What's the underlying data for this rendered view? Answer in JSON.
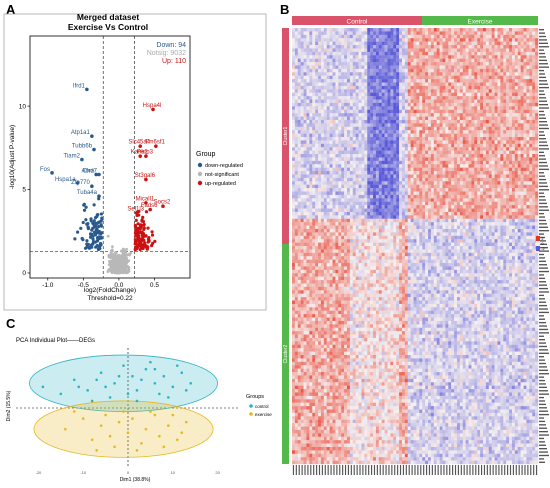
{
  "panels": {
    "a": "A",
    "b": "B",
    "c": "C"
  },
  "chart_data": [
    {
      "type": "scatter",
      "panel": "A",
      "title": "Merged dataset",
      "subtitle": "Exercise Vs Control",
      "xlabel": "log2(FoldChange)",
      "xlabel_sub": "Threshold=0.22",
      "ylabel": "-log10(Adjust P-value)",
      "xlim": [
        -1.25,
        1.0
      ],
      "ylim": [
        -0.3,
        14.2
      ],
      "x_ticks": [
        "-1.0",
        "-0.5",
        "0.0",
        "0.5"
      ],
      "y_ticks": [
        "0",
        "5",
        "10"
      ],
      "threshold_x": [
        -0.22,
        0.22
      ],
      "threshold_y": 1.3,
      "counts": {
        "down": "Down: 94",
        "notsig": "Notsig: 9032",
        "up": "Up: 110"
      },
      "legend": {
        "title": "Group",
        "entries": [
          "down-regulated",
          "not-significant",
          "up-regulated"
        ],
        "placement": "right"
      },
      "colors": {
        "down": "#2a5a8c",
        "notsig": "#b8b8b8",
        "up": "#cc1111"
      },
      "labels_down": [
        {
          "text": "Ifrd1",
          "x": -0.45,
          "y": 11.0
        },
        {
          "text": "Atp1a1",
          "x": -0.38,
          "y": 8.2
        },
        {
          "text": "Tubb6b",
          "x": -0.35,
          "y": 7.4
        },
        {
          "text": "Tiam2",
          "x": -0.52,
          "y": 6.8
        },
        {
          "text": "Fos",
          "x": -0.94,
          "y": 6.0
        },
        {
          "text": "Abra",
          "x": -0.32,
          "y": 5.9
        },
        {
          "text": "Chd7",
          "x": -0.28,
          "y": 5.9
        },
        {
          "text": "Hspa1a",
          "x": -0.58,
          "y": 5.4
        },
        {
          "text": "Zfp770",
          "x": -0.38,
          "y": 5.2
        },
        {
          "text": "Tuba4a",
          "x": -0.28,
          "y": 4.6
        }
      ],
      "labels_up": [
        {
          "text": "Hspa4l",
          "x": 0.48,
          "y": 9.8
        },
        {
          "text": "Slc45a4",
          "x": 0.3,
          "y": 7.6
        },
        {
          "text": "Tm6sf1",
          "x": 0.52,
          "y": 7.6
        },
        {
          "text": "Kank2",
          "x": 0.3,
          "y": 7.0
        },
        {
          "text": "Perp3",
          "x": 0.38,
          "y": 7.0
        },
        {
          "text": "St3gal6",
          "x": 0.38,
          "y": 5.6
        },
        {
          "text": "Micall1",
          "x": 0.38,
          "y": 4.2
        },
        {
          "text": "Socs2",
          "x": 0.62,
          "y": 4.0
        },
        {
          "text": "Fads6",
          "x": 0.44,
          "y": 3.8
        },
        {
          "text": "Sel1l3",
          "x": 0.25,
          "y": 3.6
        }
      ]
    },
    {
      "type": "heatmap",
      "panel": "B",
      "column_groups": [
        {
          "name": "Control",
          "color": "#d9536b"
        },
        {
          "name": "Exercise",
          "color": "#55b84a"
        }
      ],
      "row_clusters": [
        {
          "name": "Cluster1",
          "color": "#d9536b"
        },
        {
          "name": "Cluster2",
          "color": "#55b84a"
        }
      ],
      "colors": {
        "high": "#e8331f",
        "mid": "#f5f0f0",
        "low": "#5a5ad8"
      },
      "scale_ticks": [
        "2",
        "0",
        "-2"
      ],
      "rows_per_cluster": [
        56,
        72
      ],
      "columns_per_group": [
        40,
        45
      ]
    },
    {
      "type": "scatter",
      "panel": "C",
      "title": "PCA Individual Plot——DEGs",
      "xlabel": "Dim1 (38.8%)",
      "ylabel": "Dim2 (15.5%)",
      "xlim": [
        -25,
        25
      ],
      "ylim": [
        -17,
        17
      ],
      "x_ticks": [
        "-20",
        "-10",
        "0",
        "10",
        "20"
      ],
      "legend": {
        "title": "Groups",
        "entries": [
          "control",
          "exercise"
        ],
        "placement": "right"
      },
      "colors": {
        "control": "#2fb3c4",
        "exercise": "#e6b820"
      },
      "series": [
        {
          "name": "control",
          "points": [
            [
              -19,
              6
            ],
            [
              -15,
              4
            ],
            [
              -12,
              8
            ],
            [
              -9,
              5
            ],
            [
              -6,
              10
            ],
            [
              -3,
              7
            ],
            [
              -1,
              12
            ],
            [
              1,
              9
            ],
            [
              2,
              5
            ],
            [
              4,
              11
            ],
            [
              6,
              7
            ],
            [
              8,
              9
            ],
            [
              10,
              6
            ],
            [
              12,
              10
            ],
            [
              14,
              7
            ],
            [
              -4,
              3
            ],
            [
              0,
              4
            ],
            [
              3,
              8
            ],
            [
              5,
              13
            ],
            [
              -8,
              2
            ],
            [
              -11,
              6
            ],
            [
              7,
              4
            ],
            [
              11,
              12
            ],
            [
              -2,
              9
            ],
            [
              9,
              3
            ],
            [
              -5,
              6
            ],
            [
              2,
              2
            ],
            [
              13,
              5
            ],
            [
              -7,
              8
            ],
            [
              6,
              11
            ]
          ]
        },
        {
          "name": "exercise",
          "points": [
            [
              -14,
              -6
            ],
            [
              -10,
              -3
            ],
            [
              -8,
              -9
            ],
            [
              -6,
              -5
            ],
            [
              -4,
              -8
            ],
            [
              -2,
              -4
            ],
            [
              0,
              -7
            ],
            [
              1,
              -3
            ],
            [
              3,
              -10
            ],
            [
              4,
              -6
            ],
            [
              6,
              -2
            ],
            [
              7,
              -8
            ],
            [
              9,
              -5
            ],
            [
              11,
              -9
            ],
            [
              13,
              -4
            ],
            [
              -12,
              -1
            ],
            [
              -3,
              -11
            ],
            [
              2,
              -12
            ],
            [
              5,
              -1
            ],
            [
              8,
              -11
            ],
            [
              10,
              -2
            ],
            [
              -7,
              -12
            ],
            [
              -1,
              -1
            ],
            [
              12,
              -7
            ],
            [
              -5,
              -2
            ]
          ]
        }
      ],
      "ellipses": [
        {
          "name": "control",
          "center": [
            -1,
            7
          ],
          "radii": [
            21,
            8
          ]
        },
        {
          "name": "exercise",
          "center": [
            -1,
            -6
          ],
          "radii": [
            20,
            8
          ]
        }
      ]
    }
  ]
}
